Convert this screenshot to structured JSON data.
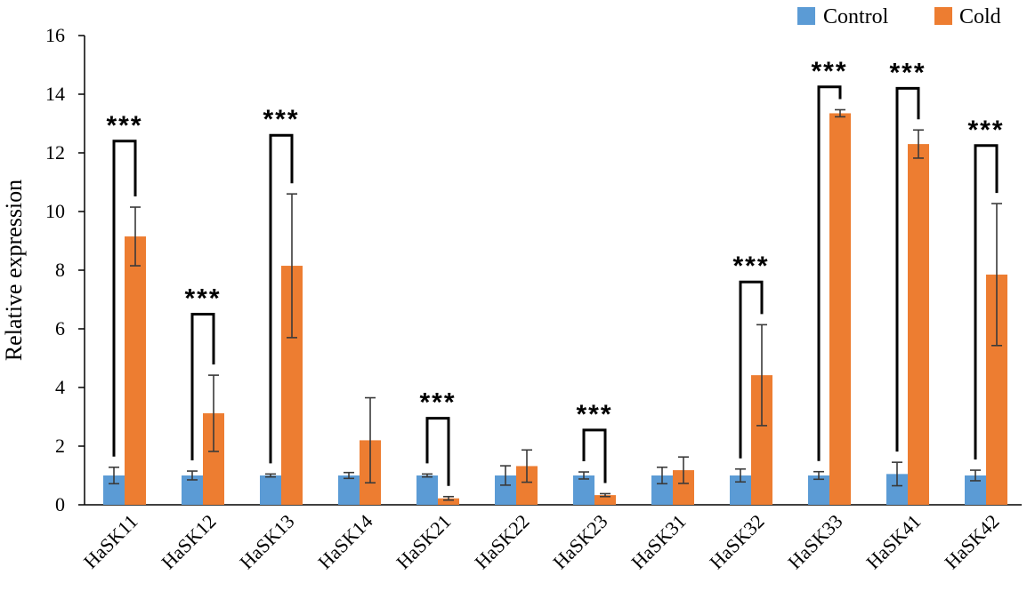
{
  "chart_data": {
    "type": "bar",
    "title": "",
    "xlabel": "",
    "ylabel": "Relative expression",
    "ylim": [
      0,
      16
    ],
    "yticks": [
      0,
      2,
      4,
      6,
      8,
      10,
      12,
      14,
      16
    ],
    "categories": [
      "HaSK11",
      "HaSK12",
      "HaSK13",
      "HaSK14",
      "HaSK21",
      "HaSK22",
      "HaSK23",
      "HaSK31",
      "HaSK32",
      "HaSK33",
      "HaSK41",
      "HaSK42"
    ],
    "series": [
      {
        "name": "Control",
        "color": "#5b9bd5",
        "values": [
          1.0,
          1.0,
          1.0,
          1.0,
          1.0,
          1.0,
          1.0,
          1.0,
          1.0,
          1.0,
          1.05,
          1.0
        ],
        "errors": [
          0.28,
          0.15,
          0.05,
          0.1,
          0.05,
          0.33,
          0.12,
          0.28,
          0.22,
          0.13,
          0.4,
          0.18
        ]
      },
      {
        "name": "Cold",
        "color": "#ed7d31",
        "values": [
          9.15,
          3.12,
          8.15,
          2.2,
          0.22,
          1.32,
          0.33,
          1.18,
          4.42,
          13.35,
          12.3,
          7.85
        ],
        "errors": [
          1.0,
          1.3,
          2.45,
          1.45,
          0.06,
          0.55,
          0.05,
          0.45,
          1.72,
          0.12,
          0.48,
          2.42
        ]
      }
    ],
    "significance": [
      {
        "category": "HaSK11",
        "label": "***",
        "bracket_top": 12.4
      },
      {
        "category": "HaSK12",
        "label": "***",
        "bracket_top": 6.5
      },
      {
        "category": "HaSK13",
        "label": "***",
        "bracket_top": 12.6
      },
      {
        "category": "HaSK21",
        "label": "***",
        "bracket_top": 2.95
      },
      {
        "category": "HaSK23",
        "label": "***",
        "bracket_top": 2.55
      },
      {
        "category": "HaSK32",
        "label": "***",
        "bracket_top": 7.6
      },
      {
        "category": "HaSK33",
        "label": "***",
        "bracket_top": 14.25
      },
      {
        "category": "HaSK41",
        "label": "***",
        "bracket_top": 14.2
      },
      {
        "category": "HaSK42",
        "label": "***",
        "bracket_top": 12.25
      }
    ],
    "legend": {
      "position": "top-right",
      "entries": [
        "Control",
        "Cold"
      ]
    },
    "grid": false
  }
}
